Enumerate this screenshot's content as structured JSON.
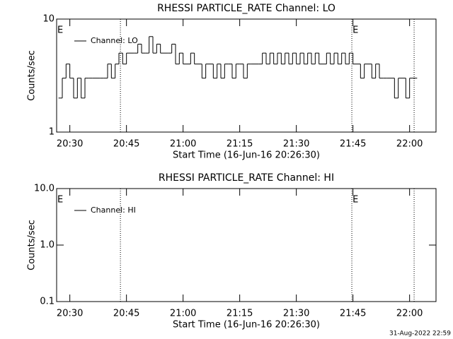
{
  "chart_data": [
    {
      "type": "line",
      "step": true,
      "title": "RHESSI PARTICLE_RATE Channel: LO",
      "xlabel": "Start Time (16-Jun-16 20:26:30)",
      "ylabel": "Counts/sec",
      "log_y": true,
      "ylim": [
        1,
        10
      ],
      "yticks": [
        1,
        10
      ],
      "xlim": [
        1226.5,
        1327
      ],
      "xticks": [
        {
          "value": 1230,
          "label": "20:30"
        },
        {
          "value": 1245,
          "label": "20:45"
        },
        {
          "value": 1260,
          "label": "21:00"
        },
        {
          "value": 1275,
          "label": "21:15"
        },
        {
          "value": 1290,
          "label": "21:30"
        },
        {
          "value": 1305,
          "label": "21:45"
        },
        {
          "value": 1320,
          "label": "22:00"
        }
      ],
      "vlines": [
        1243.4,
        1304.7,
        1321.2
      ],
      "annotations": [
        {
          "x": 1226.5,
          "text": "E"
        },
        {
          "x": 1304.7,
          "text": "E"
        }
      ],
      "legend": "upper left",
      "x": [
        1227,
        1228,
        1229,
        1230,
        1231,
        1232,
        1233,
        1234,
        1235,
        1236,
        1237,
        1238,
        1239,
        1240,
        1241,
        1242,
        1243,
        1244,
        1245,
        1246,
        1247,
        1248,
        1249,
        1250,
        1251,
        1252,
        1253,
        1254,
        1255,
        1256,
        1257,
        1258,
        1259,
        1260,
        1261,
        1262,
        1263,
        1264,
        1265,
        1266,
        1267,
        1268,
        1269,
        1270,
        1271,
        1272,
        1273,
        1274,
        1275,
        1276,
        1277,
        1278,
        1279,
        1280,
        1281,
        1282,
        1283,
        1284,
        1285,
        1286,
        1287,
        1288,
        1289,
        1290,
        1291,
        1292,
        1293,
        1294,
        1295,
        1296,
        1297,
        1298,
        1299,
        1300,
        1301,
        1302,
        1303,
        1304,
        1305,
        1306,
        1307,
        1308,
        1309,
        1310,
        1311,
        1312,
        1313,
        1314,
        1315,
        1316,
        1317,
        1318,
        1319,
        1320,
        1321
      ],
      "series": [
        {
          "name": "Channel: LO",
          "color": "#000000",
          "values": [
            2,
            3,
            4,
            3,
            2,
            3,
            2,
            3,
            3,
            3,
            3,
            3,
            3,
            4,
            3,
            4,
            5,
            4,
            5,
            5,
            5,
            6,
            5,
            5,
            7,
            5,
            6,
            5,
            5,
            5,
            6,
            4,
            5,
            4,
            4,
            5,
            4,
            4,
            3,
            4,
            4,
            3,
            4,
            3,
            4,
            4,
            3,
            4,
            4,
            3,
            4,
            4,
            4,
            4,
            5,
            4,
            5,
            4,
            5,
            4,
            5,
            4,
            5,
            4,
            5,
            4,
            5,
            4,
            5,
            4,
            4,
            5,
            4,
            5,
            4,
            5,
            4,
            5,
            4,
            4,
            3,
            4,
            4,
            3,
            4,
            3,
            3,
            3,
            3,
            2,
            3,
            3,
            2,
            3,
            3
          ]
        }
      ]
    },
    {
      "type": "line",
      "step": true,
      "title": "RHESSI PARTICLE_RATE Channel: HI",
      "xlabel": "Start Time (16-Jun-16 20:26:30)",
      "ylabel": "Counts/sec",
      "log_y": true,
      "ylim": [
        0.1,
        10
      ],
      "yticks": [
        0.1,
        {
          "value": 1,
          "label": "1.0"
        },
        {
          "value": 10,
          "label": "10.0"
        }
      ],
      "xlim": [
        1226.5,
        1327
      ],
      "xticks": [
        {
          "value": 1230,
          "label": "20:30"
        },
        {
          "value": 1245,
          "label": "20:45"
        },
        {
          "value": 1260,
          "label": "21:00"
        },
        {
          "value": 1275,
          "label": "21:15"
        },
        {
          "value": 1290,
          "label": "21:30"
        },
        {
          "value": 1305,
          "label": "21:45"
        },
        {
          "value": 1320,
          "label": "22:00"
        }
      ],
      "vlines": [
        1243.4,
        1304.7,
        1321.2
      ],
      "annotations": [
        {
          "x": 1226.5,
          "text": "E"
        },
        {
          "x": 1304.7,
          "text": "E"
        }
      ],
      "legend": "upper left",
      "x": [],
      "series": [
        {
          "name": "Channel: HI",
          "color": "#000000",
          "values": []
        }
      ]
    },
    {
      "type": "footer",
      "text": "31-Aug-2022 22:59"
    }
  ]
}
